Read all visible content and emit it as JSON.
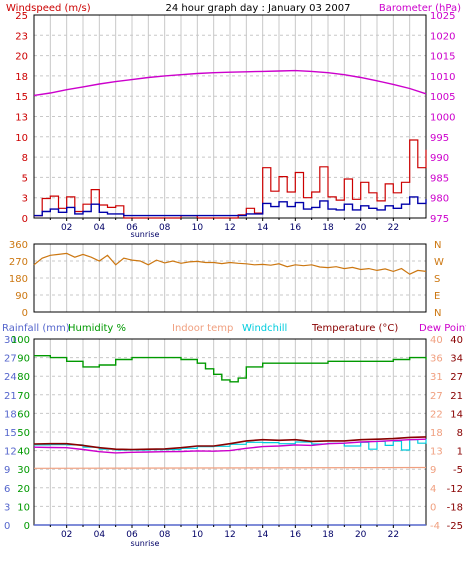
{
  "header": {
    "left": "Windspeed (m/s)",
    "center": "24 hour graph day : January 03 2007",
    "right": "Barometer (hPa)"
  },
  "colors": {
    "wind": "#cc0000",
    "wind_avg": "#0000aa",
    "barometer": "#cc00cc",
    "direction": "#cc7711",
    "rainfall": "#5566cc",
    "humidity": "#009900",
    "indoor": "#f0a080",
    "windchill": "#00ccdd",
    "temperature": "#880000",
    "dewpoint": "#cc00cc",
    "grid": "#c8c8c8",
    "axis": "#000000",
    "hour_labels": "#000066"
  },
  "time_axis": {
    "labels": [
      "02",
      "04",
      "06",
      "08",
      "10",
      "12",
      "14",
      "16",
      "18",
      "20",
      "22"
    ],
    "sunrise": "sunrise"
  },
  "chart_data": [
    {
      "type": "line",
      "name": "wind_barometer",
      "title": "24 hour graph day : January 03 2007",
      "ylabel_left": "Windspeed (m/s)",
      "ylabel_right": "Barometer (hPa)",
      "left_ticks": [
        "25",
        "23",
        "20",
        "18",
        "15",
        "13",
        "10",
        "8",
        "5",
        "3",
        "0"
      ],
      "right_ticks": [
        "1025",
        "1020",
        "1015",
        "1010",
        "1005",
        "1000",
        "995",
        "990",
        "985",
        "980",
        "975"
      ],
      "ylim_left": [
        0,
        25
      ],
      "ylim_right": [
        975,
        1025
      ],
      "xlim": [
        0,
        24
      ],
      "series": [
        {
          "key": "barometer",
          "axis": "right",
          "x": [
            0,
            1,
            2,
            3,
            4,
            5,
            6,
            7,
            8,
            9,
            10,
            11,
            12,
            13,
            14,
            15,
            16,
            17,
            18,
            19,
            20,
            21,
            22,
            23,
            24
          ],
          "values": [
            1005.2,
            1005.8,
            1006.6,
            1007.3,
            1008.0,
            1008.6,
            1009.1,
            1009.6,
            1010.0,
            1010.3,
            1010.6,
            1010.8,
            1010.9,
            1011.0,
            1011.1,
            1011.2,
            1011.3,
            1011.1,
            1010.8,
            1010.3,
            1009.6,
            1008.8,
            1007.9,
            1006.9,
            1005.6
          ]
        },
        {
          "key": "wind_gust",
          "axis": "left",
          "x": [
            0,
            0.5,
            1,
            1.5,
            2,
            2.5,
            3,
            3.5,
            4,
            4.5,
            5,
            5.5,
            6,
            7,
            8,
            9,
            10,
            11,
            12,
            12.5,
            13,
            13.5,
            14,
            14.5,
            15,
            15.5,
            16,
            16.5,
            17,
            17.5,
            18,
            18.5,
            19,
            19.5,
            20,
            20.5,
            21,
            21.5,
            22,
            22.5,
            23,
            23.5,
            24
          ],
          "values": [
            0.3,
            2.4,
            2.7,
            1.2,
            2.6,
            0.8,
            1.7,
            3.5,
            1.6,
            1.3,
            1.5,
            0,
            0,
            0,
            0,
            0.3,
            0,
            0,
            0,
            0.4,
            1.2,
            0.6,
            6.2,
            3.3,
            5.1,
            3.2,
            5.6,
            2.5,
            3.2,
            6.3,
            2.6,
            2.2,
            4.8,
            2.3,
            4.4,
            3.1,
            2.1,
            4.2,
            3.1,
            4.4,
            9.6,
            6.2,
            8.4
          ]
        },
        {
          "key": "wind_avg",
          "axis": "left",
          "x": [
            0,
            0.5,
            1,
            1.5,
            2,
            2.5,
            3,
            3.5,
            4,
            4.5,
            5,
            5.5,
            6,
            7,
            8,
            9,
            10,
            11,
            12,
            12.5,
            13,
            13.5,
            14,
            14.5,
            15,
            15.5,
            16,
            16.5,
            17,
            17.5,
            18,
            18.5,
            19,
            19.5,
            20,
            20.5,
            21,
            21.5,
            22,
            22.5,
            23,
            23.5,
            24
          ],
          "values": [
            0.3,
            0.8,
            1.1,
            0.7,
            1.3,
            0.5,
            0.8,
            1.7,
            0.7,
            0.5,
            0.5,
            0.3,
            0.3,
            0.3,
            0.3,
            0.3,
            0.3,
            0.3,
            0.3,
            0.3,
            0.5,
            0.5,
            1.8,
            1.4,
            2.0,
            1.4,
            1.9,
            1.1,
            1.3,
            2.1,
            1.1,
            1.0,
            1.7,
            1.0,
            1.5,
            1.2,
            1.0,
            1.5,
            1.2,
            1.7,
            2.6,
            1.8,
            2.3
          ]
        }
      ]
    },
    {
      "type": "line",
      "name": "wind_direction",
      "left_ticks": [
        "360",
        "270",
        "180",
        "90",
        "0"
      ],
      "right_ticks": [
        "N",
        "W",
        "S",
        "E",
        "N"
      ],
      "ylim": [
        0,
        360
      ],
      "xlim": [
        0,
        24
      ],
      "series": [
        {
          "key": "direction",
          "x": [
            0,
            0.5,
            1,
            1.5,
            2,
            2.5,
            3,
            3.5,
            4,
            4.5,
            5,
            5.5,
            6,
            6.5,
            7,
            7.5,
            8,
            8.5,
            9,
            9.5,
            10,
            10.5,
            11,
            11.5,
            12,
            12.5,
            13,
            13.5,
            14,
            14.5,
            15,
            15.5,
            16,
            16.5,
            17,
            17.5,
            18,
            18.5,
            19,
            19.5,
            20,
            20.5,
            21,
            21.5,
            22,
            22.5,
            23,
            23.5,
            24
          ],
          "values": [
            250,
            285,
            300,
            305,
            310,
            290,
            305,
            290,
            270,
            300,
            250,
            285,
            275,
            270,
            250,
            275,
            260,
            270,
            258,
            265,
            268,
            262,
            262,
            256,
            262,
            258,
            255,
            250,
            252,
            248,
            255,
            240,
            250,
            245,
            250,
            238,
            235,
            240,
            230,
            236,
            225,
            230,
            220,
            228,
            215,
            230,
            200,
            220,
            215
          ]
        }
      ]
    },
    {
      "type": "line",
      "name": "temperature_humidity",
      "header_labels": [
        "Rainfall (mm)",
        "Humidity %",
        "Indoor temp",
        "Windchill",
        "Temperature (°C)",
        "Dew Point"
      ],
      "rain_ticks": [
        "30",
        "27",
        "24",
        "21",
        "18",
        "15",
        "12",
        "9",
        "6",
        "3",
        "0"
      ],
      "humidity_ticks": [
        "100",
        "90",
        "80",
        "70",
        "60",
        "50",
        "40",
        "30",
        "20",
        "10",
        "0"
      ],
      "temp_ticks_a": [
        "40",
        "36",
        "31",
        "27",
        "22",
        "18",
        "13",
        "9",
        "4",
        "0",
        "-4"
      ],
      "temp_ticks_b": [
        "40",
        "34",
        "27",
        "21",
        "14",
        "8",
        "1",
        "-5",
        "-12",
        "-18",
        "-25"
      ],
      "ylim_humidity": [
        0,
        100
      ],
      "ylim_rain": [
        0,
        30
      ],
      "ylim_temp": [
        -25,
        40
      ],
      "xlim": [
        0,
        24
      ],
      "series": [
        {
          "key": "humidity",
          "axis": "humidity",
          "x": [
            0,
            1,
            2,
            3,
            4,
            5,
            6,
            7,
            8,
            9,
            10,
            10.5,
            11,
            11.5,
            12,
            12.5,
            13,
            14,
            15,
            16,
            17,
            18,
            19,
            20,
            21,
            22,
            23,
            24
          ],
          "values": [
            91,
            90,
            88,
            85,
            86,
            89,
            90,
            90,
            90,
            89,
            87,
            84,
            81,
            78,
            77,
            79,
            85,
            87,
            87,
            87,
            87,
            88,
            88,
            88,
            88,
            89,
            90,
            89
          ]
        },
        {
          "key": "temperature",
          "axis": "temp",
          "x": [
            0,
            1,
            2,
            3,
            4,
            5,
            6,
            7,
            8,
            9,
            10,
            11,
            12,
            13,
            14,
            15,
            16,
            17,
            18,
            19,
            20,
            21,
            22,
            23,
            24
          ],
          "values": [
            3.3,
            3.4,
            3.4,
            2.8,
            2.0,
            1.5,
            1.4,
            1.5,
            1.6,
            2.0,
            2.6,
            2.6,
            3.4,
            4.4,
            4.8,
            4.6,
            4.8,
            4.2,
            4.4,
            4.4,
            4.8,
            5.0,
            5.2,
            5.6,
            5.8
          ]
        },
        {
          "key": "dewpoint",
          "axis": "temp",
          "x": [
            0,
            1,
            2,
            3,
            4,
            5,
            6,
            7,
            8,
            9,
            10,
            11,
            12,
            13,
            14,
            15,
            16,
            17,
            18,
            19,
            20,
            21,
            22,
            23,
            24
          ],
          "values": [
            2.2,
            2.1,
            2.0,
            1.4,
            0.6,
            0.2,
            0.4,
            0.5,
            0.6,
            0.7,
            0.9,
            0.8,
            1.0,
            1.8,
            2.4,
            2.6,
            3.0,
            2.8,
            3.4,
            3.6,
            4.0,
            4.2,
            4.5,
            4.8,
            5.0
          ]
        },
        {
          "key": "windchill",
          "axis": "temp",
          "x": [
            0,
            1,
            2,
            3,
            4,
            5,
            6,
            7,
            8,
            9,
            10,
            11,
            12,
            13,
            14,
            15,
            16,
            17,
            18,
            19,
            20,
            20.5,
            21,
            21.5,
            22,
            22.5,
            23,
            23.5,
            24
          ],
          "values": [
            3.0,
            3.1,
            3.0,
            2.2,
            1.5,
            1.2,
            1.2,
            1.3,
            1.4,
            1.8,
            2.4,
            2.5,
            3.2,
            3.9,
            3.8,
            3.4,
            4.0,
            3.3,
            3.5,
            2.6,
            3.9,
            1.5,
            4.2,
            2.8,
            4.3,
            1.2,
            4.8,
            3.6,
            5.1
          ]
        },
        {
          "key": "indoor",
          "axis": "temp",
          "x": [
            0,
            24
          ],
          "values": [
            -5.2,
            -4.9
          ]
        },
        {
          "key": "rainfall",
          "axis": "rain",
          "x": [
            0,
            24
          ],
          "values": [
            0,
            0
          ]
        }
      ]
    }
  ]
}
